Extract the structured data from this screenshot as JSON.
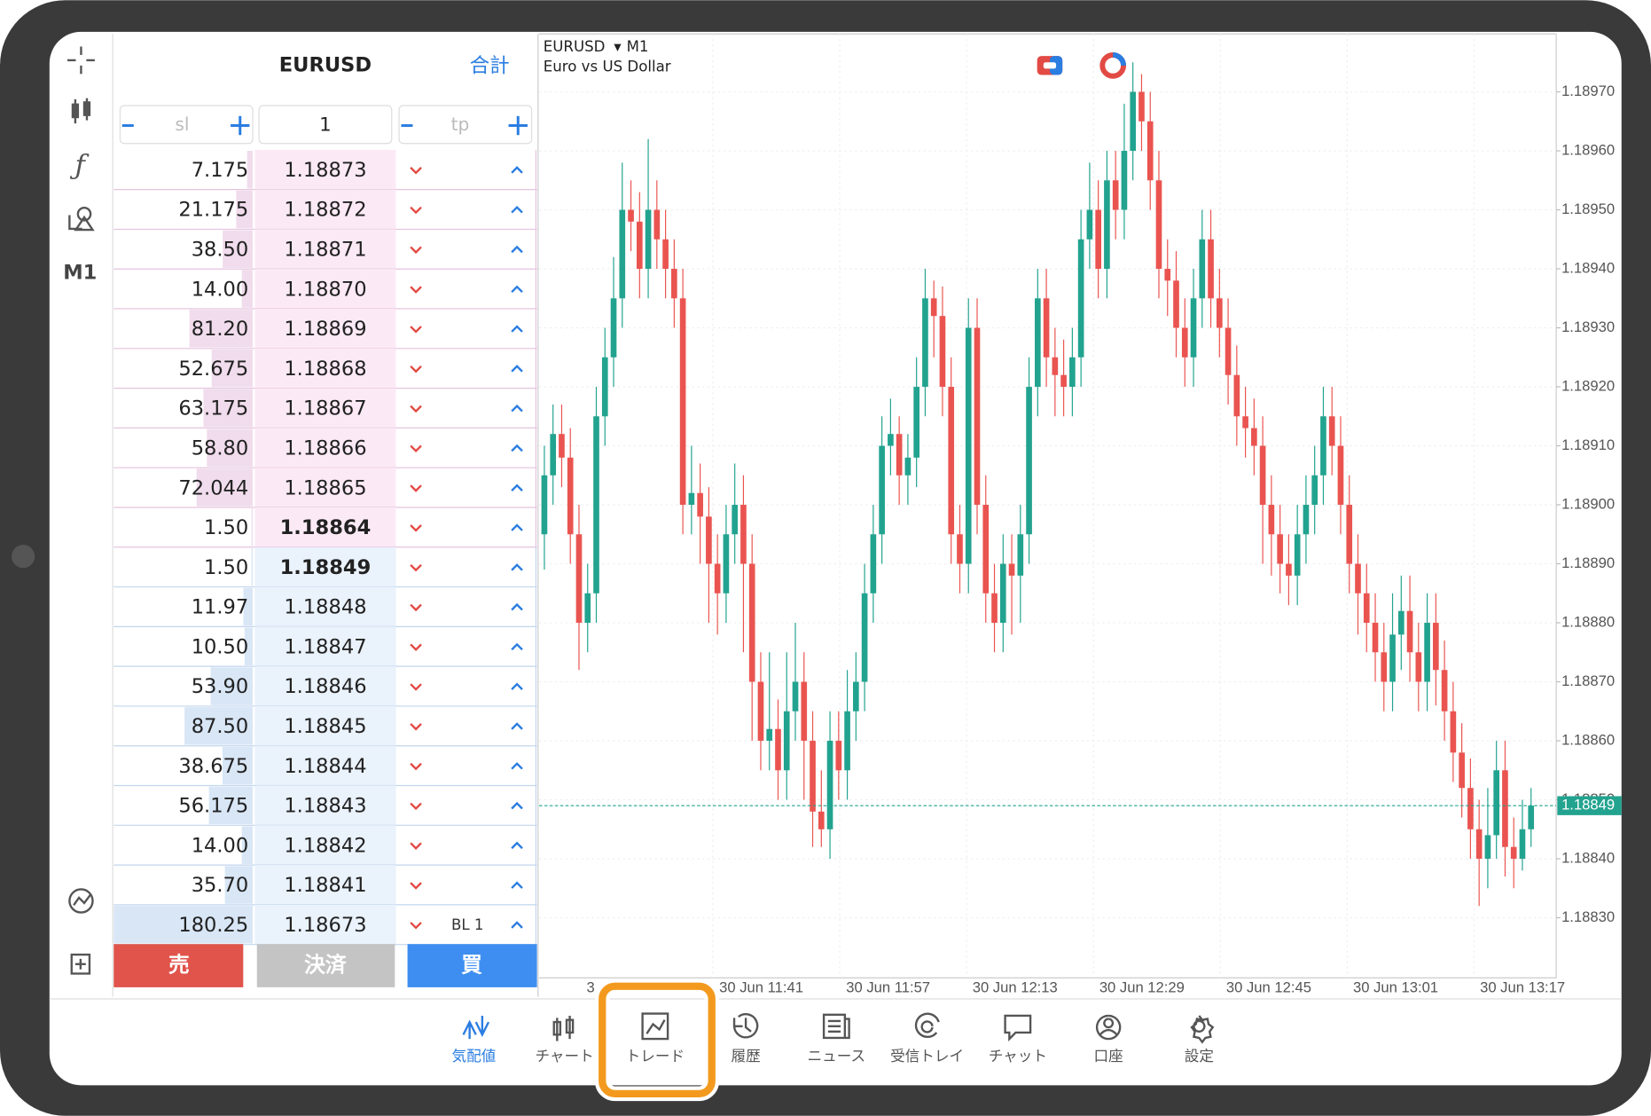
{
  "depth": {
    "symbol": "EURUSD",
    "total_label": "合計",
    "sl": "sl",
    "volume": "1",
    "tp": "tp",
    "rows": [
      {
        "volume": 7.175,
        "price": "1.18873"
      },
      {
        "volume": 21.175,
        "price": "1.18872"
      },
      {
        "volume": {
          "value": 38.5,
          "label": "38.50"
        },
        "price": "1.18871"
      },
      {
        "volume": {
          "value": 14,
          "label": "14.00"
        },
        "price": "1.18870"
      },
      {
        "volume": {
          "value": 81.2,
          "label": "81.20"
        },
        "price": "1.18869"
      },
      {
        "volume": 52.675,
        "price": "1.18868"
      },
      {
        "volume": 63.175,
        "price": "1.18867"
      },
      {
        "volume": {
          "value": 58.8,
          "label": "58.80"
        },
        "price": "1.18866"
      },
      {
        "volume": 72.044,
        "price": "1.18865"
      },
      {
        "volume": {
          "value": 1.5,
          "label": "1.50"
        },
        "price": "1.18864"
      },
      {
        "volume": {
          "value": 1.5,
          "label": "1.50"
        },
        "price": "1.18849"
      },
      {
        "volume": 11.97,
        "price": "1.18848"
      },
      {
        "volume": {
          "value": 10.5,
          "label": "10.50"
        },
        "price": "1.18847"
      },
      {
        "volume": {
          "value": 53.9,
          "label": "53.90"
        },
        "price": "1.18846"
      },
      {
        "volume": {
          "value": 87.5,
          "label": "87.50"
        },
        "price": "1.18845"
      },
      {
        "volume": 38.675,
        "price": "1.18844"
      },
      {
        "volume": 56.175,
        "price": "1.18843"
      },
      {
        "volume": {
          "value": 14,
          "label": "14.00"
        },
        "price": "1.18842"
      },
      {
        "volume": {
          "value": 35.7,
          "label": "35.70"
        },
        "price": "1.18841"
      },
      {
        "volume": 180.25,
        "price": "1.18673",
        "tag": "BL 1"
      }
    ]
  },
  "buttons": {
    "sell": "売",
    "close": "決済",
    "buy": "買"
  },
  "toolbar": {
    "timeframe": "M1"
  },
  "chart": {
    "symbol": "EURUSD",
    "timeframe": "M1",
    "description": "Euro vs US Dollar",
    "yticks": [
      {
        "value": 1.1897,
        "label": "1.18970"
      },
      {
        "value": 1.1896,
        "label": "1.18960"
      },
      {
        "value": 1.1895,
        "label": "1.18950"
      },
      {
        "value": 1.1894,
        "label": "1.18940"
      },
      {
        "value": 1.1893,
        "label": "1.18930"
      },
      {
        "value": 1.1892,
        "label": "1.18920"
      },
      {
        "value": 1.1891,
        "label": "1.18910"
      },
      {
        "value": 1.189,
        "label": "1.18900"
      },
      {
        "value": 1.1889,
        "label": "1.18890"
      },
      {
        "value": 1.1888,
        "label": "1.18880"
      },
      {
        "value": 1.1887,
        "label": "1.18870"
      },
      {
        "value": 1.1886,
        "label": "1.18860"
      },
      {
        "value": 1.1885,
        "label": "1.18850"
      },
      {
        "value": 1.1884,
        "label": "1.18840"
      },
      {
        "value": 1.1883,
        "label": "1.18830"
      }
    ],
    "xticks": [
      "3",
      "30 Jun 11:41",
      "30 Jun 11:57",
      "30 Jun 12:13",
      "30 Jun 12:29",
      "30 Jun 12:45",
      "30 Jun 13:01",
      "30 Jun 13:17"
    ],
    "price_line": {
      "value": 1.18849,
      "label": "1.18849"
    },
    "candles": [
      [
        1.18895,
        1.1891,
        1.18889,
        1.18905
      ],
      [
        1.18905,
        1.18917,
        1.189,
        1.18912
      ],
      [
        1.18912,
        1.18917,
        1.18903,
        1.18908
      ],
      [
        1.18908,
        1.18913,
        1.1889,
        1.18895
      ],
      [
        1.18895,
        1.189,
        1.18872,
        1.1888
      ],
      [
        1.1888,
        1.1889,
        1.18875,
        1.18885
      ],
      [
        1.18885,
        1.1892,
        1.1888,
        1.18915
      ],
      [
        1.18915,
        1.1893,
        1.1891,
        1.18925
      ],
      [
        1.18925,
        1.18942,
        1.1892,
        1.18935
      ],
      [
        1.18935,
        1.18958,
        1.1893,
        1.1895
      ],
      [
        1.1895,
        1.18955,
        1.18943,
        1.18948
      ],
      [
        1.18948,
        1.18953,
        1.18935,
        1.1894
      ],
      [
        1.1894,
        1.18962,
        1.18935,
        1.1895
      ],
      [
        1.1895,
        1.18955,
        1.1894,
        1.18945
      ],
      [
        1.18945,
        1.1895,
        1.18935,
        1.1894
      ],
      [
        1.1894,
        1.18945,
        1.1893,
        1.18935
      ],
      [
        1.18935,
        1.1894,
        1.18895,
        1.189
      ],
      [
        1.189,
        1.1891,
        1.18895,
        1.18902
      ],
      [
        1.18902,
        1.18907,
        1.1889,
        1.18898
      ],
      [
        1.18898,
        1.18903,
        1.1888,
        1.1889
      ],
      [
        1.1889,
        1.18895,
        1.18878,
        1.18885
      ],
      [
        1.18885,
        1.189,
        1.1888,
        1.18895
      ],
      [
        1.18895,
        1.18907,
        1.1889,
        1.189
      ],
      [
        1.189,
        1.18905,
        1.18875,
        1.1889
      ],
      [
        1.1889,
        1.18895,
        1.1886,
        1.1887
      ],
      [
        1.1887,
        1.18875,
        1.18855,
        1.1886
      ],
      [
        1.1886,
        1.18875,
        1.18855,
        1.18862
      ],
      [
        1.18862,
        1.18867,
        1.1885,
        1.18855
      ],
      [
        1.18855,
        1.18875,
        1.1885,
        1.18865
      ],
      [
        1.18865,
        1.1888,
        1.1886,
        1.1887
      ],
      [
        1.1887,
        1.18875,
        1.1885,
        1.1886
      ],
      [
        1.1886,
        1.18865,
        1.18842,
        1.18848
      ],
      [
        1.18848,
        1.18855,
        1.18842,
        1.18845
      ],
      [
        1.18845,
        1.18865,
        1.1884,
        1.1886
      ],
      [
        1.1886,
        1.18865,
        1.1885,
        1.18855
      ],
      [
        1.18855,
        1.18872,
        1.1885,
        1.18865
      ],
      [
        1.18865,
        1.18875,
        1.1886,
        1.1887
      ],
      [
        1.1887,
        1.1889,
        1.18865,
        1.18885
      ],
      [
        1.18885,
        1.189,
        1.1888,
        1.18895
      ],
      [
        1.18895,
        1.18915,
        1.1889,
        1.1891
      ],
      [
        1.1891,
        1.18918,
        1.18905,
        1.18912
      ],
      [
        1.18912,
        1.18915,
        1.189,
        1.18905
      ],
      [
        1.18905,
        1.18912,
        1.189,
        1.18908
      ],
      [
        1.18908,
        1.18925,
        1.18903,
        1.1892
      ],
      [
        1.1892,
        1.1894,
        1.18915,
        1.18935
      ],
      [
        1.18935,
        1.18938,
        1.18925,
        1.18932
      ],
      [
        1.18932,
        1.18937,
        1.18915,
        1.1892
      ],
      [
        1.1892,
        1.18925,
        1.1889,
        1.18895
      ],
      [
        1.18895,
        1.189,
        1.18885,
        1.1889
      ],
      [
        1.1889,
        1.18935,
        1.18885,
        1.1893
      ],
      [
        1.1893,
        1.18935,
        1.18895,
        1.189
      ],
      [
        1.189,
        1.18905,
        1.1888,
        1.18885
      ],
      [
        1.18885,
        1.1889,
        1.18875,
        1.1888
      ],
      [
        1.1888,
        1.18895,
        1.18875,
        1.1889
      ],
      [
        1.1889,
        1.18895,
        1.18878,
        1.18888
      ],
      [
        1.18888,
        1.189,
        1.1888,
        1.18895
      ],
      [
        1.18895,
        1.18925,
        1.1889,
        1.1892
      ],
      [
        1.1892,
        1.1894,
        1.18915,
        1.18935
      ],
      [
        1.18935,
        1.1894,
        1.1892,
        1.18925
      ],
      [
        1.18925,
        1.1893,
        1.18915,
        1.18922
      ],
      [
        1.18922,
        1.18928,
        1.18915,
        1.1892
      ],
      [
        1.1892,
        1.1893,
        1.18915,
        1.18925
      ],
      [
        1.18925,
        1.1895,
        1.1892,
        1.18945
      ],
      [
        1.18945,
        1.18958,
        1.1894,
        1.1895
      ],
      [
        1.1895,
        1.18955,
        1.18935,
        1.1894
      ],
      [
        1.1894,
        1.1896,
        1.18935,
        1.18955
      ],
      [
        1.18955,
        1.1896,
        1.18945,
        1.1895
      ],
      [
        1.1895,
        1.18968,
        1.18945,
        1.1896
      ],
      [
        1.1896,
        1.18975,
        1.18955,
        1.1897
      ],
      [
        1.1897,
        1.18973,
        1.1896,
        1.18965
      ],
      [
        1.18965,
        1.1897,
        1.1895,
        1.18955
      ],
      [
        1.18955,
        1.1896,
        1.18935,
        1.1894
      ],
      [
        1.1894,
        1.18945,
        1.18932,
        1.18938
      ],
      [
        1.18938,
        1.18943,
        1.18925,
        1.1893
      ],
      [
        1.1893,
        1.18935,
        1.1892,
        1.18925
      ],
      [
        1.18925,
        1.1894,
        1.1892,
        1.18935
      ],
      [
        1.18935,
        1.1895,
        1.1893,
        1.18945
      ],
      [
        1.18945,
        1.1895,
        1.1893,
        1.18935
      ],
      [
        1.18935,
        1.1894,
        1.18925,
        1.1893
      ],
      [
        1.1893,
        1.18935,
        1.18917,
        1.18922
      ],
      [
        1.18922,
        1.18927,
        1.1891,
        1.18915
      ],
      [
        1.18915,
        1.1892,
        1.18908,
        1.18913
      ],
      [
        1.18913,
        1.18918,
        1.18905,
        1.1891
      ],
      [
        1.1891,
        1.18915,
        1.1889,
        1.189
      ],
      [
        1.189,
        1.18905,
        1.18888,
        1.18895
      ],
      [
        1.18895,
        1.189,
        1.18885,
        1.1889
      ],
      [
        1.1889,
        1.18895,
        1.18883,
        1.18888
      ],
      [
        1.18888,
        1.189,
        1.18883,
        1.18895
      ],
      [
        1.18895,
        1.18905,
        1.1889,
        1.189
      ],
      [
        1.189,
        1.1891,
        1.18895,
        1.18905
      ],
      [
        1.18905,
        1.1892,
        1.189,
        1.18915
      ],
      [
        1.18915,
        1.1892,
        1.18905,
        1.1891
      ],
      [
        1.1891,
        1.18915,
        1.18895,
        1.189
      ],
      [
        1.189,
        1.18905,
        1.18885,
        1.1889
      ],
      [
        1.1889,
        1.18895,
        1.18878,
        1.18885
      ],
      [
        1.18885,
        1.1889,
        1.18875,
        1.1888
      ],
      [
        1.1888,
        1.18885,
        1.1887,
        1.18875
      ],
      [
        1.18875,
        1.1888,
        1.18865,
        1.1887
      ],
      [
        1.1887,
        1.18885,
        1.18865,
        1.18878
      ],
      [
        1.18878,
        1.18888,
        1.18872,
        1.18882
      ],
      [
        1.18882,
        1.18888,
        1.1887,
        1.18875
      ],
      [
        1.18875,
        1.1888,
        1.18865,
        1.1887
      ],
      [
        1.1887,
        1.18885,
        1.18865,
        1.1888
      ],
      [
        1.1888,
        1.18885,
        1.18866,
        1.18872
      ],
      [
        1.18872,
        1.18877,
        1.1886,
        1.18865
      ],
      [
        1.18865,
        1.1887,
        1.18853,
        1.18858
      ],
      [
        1.18858,
        1.18863,
        1.18847,
        1.18852
      ],
      [
        1.18852,
        1.18857,
        1.1884,
        1.18845
      ],
      [
        1.18845,
        1.1885,
        1.18832,
        1.1884
      ],
      [
        1.1884,
        1.18852,
        1.18835,
        1.18844
      ],
      [
        1.18844,
        1.1886,
        1.1884,
        1.18855
      ],
      [
        1.18855,
        1.1886,
        1.18837,
        1.18842
      ],
      [
        1.18842,
        1.18847,
        1.18835,
        1.1884
      ],
      [
        1.1884,
        1.1885,
        1.18838,
        1.18845
      ],
      [
        1.18845,
        1.18852,
        1.18842,
        1.18849
      ]
    ]
  },
  "nav": [
    "気配値",
    "チャート",
    "トレード",
    "履歴",
    "ニュース",
    "受信トレイ",
    "チャット",
    "口座",
    "設定"
  ]
}
